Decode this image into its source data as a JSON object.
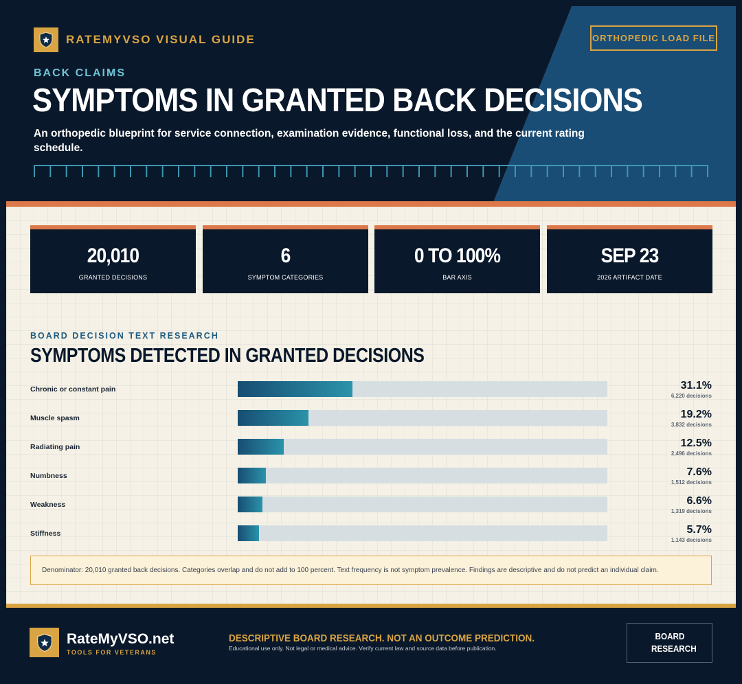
{
  "header": {
    "brand": "RATEMYVSO VISUAL GUIDE",
    "tag": "ORTHOPEDIC LOAD FILE",
    "eyebrow": "BACK CLAIMS",
    "title": "SYMPTOMS IN GRANTED BACK DECISIONS",
    "lede": "An orthopedic blueprint for service connection, examination evidence, functional loss, and the current rating schedule."
  },
  "stats": [
    {
      "value": "20,010",
      "label": "GRANTED DECISIONS"
    },
    {
      "value": "6",
      "label": "SYMPTOM CATEGORIES"
    },
    {
      "value": "0 TO 100%",
      "label": "BAR AXIS"
    },
    {
      "value": "SEP 23",
      "label": "2026 ARTIFACT DATE"
    }
  ],
  "section": {
    "eyebrow": "BOARD DECISION TEXT RESEARCH",
    "title": "SYMPTOMS DETECTED IN GRANTED DECISIONS"
  },
  "chart_data": {
    "type": "bar",
    "orientation": "horizontal",
    "title": "SYMPTOMS DETECTED IN GRANTED DECISIONS",
    "xlim": [
      0,
      100
    ],
    "categories": [
      "Chronic or constant pain",
      "Muscle spasm",
      "Radiating pain",
      "Numbness",
      "Weakness",
      "Stiffness"
    ],
    "values": [
      31.1,
      19.2,
      12.5,
      7.6,
      6.6,
      5.7
    ],
    "value_labels": [
      "31.1%",
      "19.2%",
      "12.5%",
      "7.6%",
      "6.6%",
      "5.7%"
    ],
    "count_labels": [
      "6,220 decisions",
      "3,832 decisions",
      "2,496 decisions",
      "1,512 decisions",
      "1,319 decisions",
      "1,143 decisions"
    ],
    "grid": false,
    "colors": {
      "fill_start": "#174d72",
      "fill_end": "#2b93aa",
      "track": "#d6dee2"
    }
  },
  "note": "Denominator: 20,010 granted back decisions. Categories overlap and do not add to 100 percent. Text frequency is not symptom prevalence. Findings are descriptive and do not predict an individual claim.",
  "footer": {
    "site": "RateMyVSO.net",
    "sub": "TOOLS FOR VETERANS",
    "headline": "DESCRIPTIVE BOARD RESEARCH. NOT AN OUTCOME PREDICTION.",
    "small": "Educational use only. Not legal or medical advice. Verify current law and source data before publication.",
    "button": "BOARD RESEARCH"
  },
  "icons": {
    "badge": "shield-star-icon"
  },
  "colors": {
    "navy": "#09182a",
    "gold": "#d9a443",
    "orange": "#dc7849",
    "teal": "#6fc2d6",
    "paper": "#f5f1e6"
  }
}
